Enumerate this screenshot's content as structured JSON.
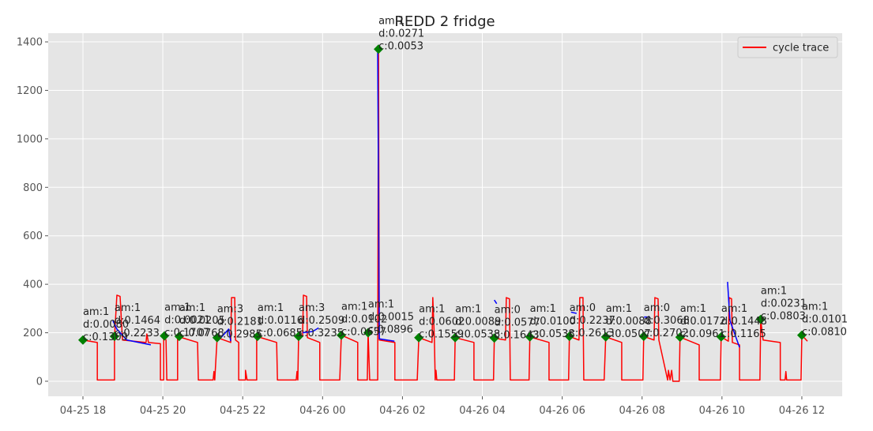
{
  "chart_data": {
    "type": "line",
    "title": "REDD 2 fridge",
    "xlim": [
      17.13,
      37.01
    ],
    "xticks": [
      {
        "value": 18,
        "label": "04-25 18"
      },
      {
        "value": 20,
        "label": "04-25 20"
      },
      {
        "value": 22,
        "label": "04-25 22"
      },
      {
        "value": 24,
        "label": "04-26 00"
      },
      {
        "value": 26,
        "label": "04-26 02"
      },
      {
        "value": 28,
        "label": "04-26 04"
      },
      {
        "value": 30,
        "label": "04-26 06"
      },
      {
        "value": 32,
        "label": "04-26 08"
      },
      {
        "value": 34,
        "label": "04-26 10"
      },
      {
        "value": 36,
        "label": "04-26 12"
      }
    ],
    "ylim": [
      -62,
      1436
    ],
    "yticks": [
      0,
      200,
      400,
      600,
      800,
      1000,
      1200,
      1400
    ],
    "grid": true,
    "legend": "upper right",
    "series": [
      {
        "name": "cycle trace",
        "color": "#ff0000",
        "x": [
          18.0,
          18.36,
          18.36,
          18.79,
          18.79,
          18.85,
          18.93,
          18.99,
          19.58,
          19.6,
          19.64,
          19.94,
          19.94,
          20.02,
          20.02,
          20.08,
          20.1,
          20.37,
          20.37,
          20.87,
          20.89,
          21.26,
          21.28,
          21.3,
          21.36,
          21.7,
          21.72,
          21.8,
          21.82,
          21.9,
          21.9,
          22.07,
          22.07,
          22.11,
          22.35,
          22.35,
          22.85,
          22.87,
          23.34,
          23.36,
          23.38,
          23.4,
          23.5,
          23.52,
          23.6,
          23.62,
          23.93,
          23.93,
          24.43,
          24.47,
          24.88,
          24.88,
          25.12,
          25.14,
          25.18,
          25.38,
          25.4,
          25.42,
          25.81,
          25.81,
          26.37,
          26.41,
          26.74,
          26.76,
          26.8,
          26.82,
          26.84,
          26.86,
          27.3,
          27.32,
          27.79,
          27.79,
          28.28,
          28.3,
          28.58,
          28.6,
          28.68,
          28.7,
          29.17,
          29.19,
          29.67,
          29.67,
          30.16,
          30.18,
          30.42,
          30.44,
          30.52,
          30.54,
          31.05,
          31.09,
          31.49,
          31.49,
          32.02,
          32.04,
          32.3,
          32.32,
          32.4,
          32.42,
          32.64,
          32.66,
          32.7,
          32.74,
          32.77,
          32.93,
          32.95,
          33.43,
          33.43,
          33.96,
          33.98,
          34.16,
          34.18,
          34.24,
          34.26,
          34.44,
          34.44,
          34.95,
          34.97,
          35.03,
          35.46,
          35.46,
          35.58,
          35.6,
          35.62,
          35.98,
          36.0,
          36.14
        ],
        "values": [
          170,
          160,
          5,
          5,
          180,
          355,
          350,
          170,
          160,
          195,
          160,
          155,
          5,
          5,
          185,
          170,
          5,
          5,
          185,
          160,
          5,
          5,
          40,
          5,
          180,
          160,
          345,
          345,
          170,
          160,
          5,
          5,
          45,
          5,
          5,
          185,
          160,
          5,
          5,
          40,
          5,
          185,
          185,
          355,
          350,
          180,
          160,
          5,
          5,
          190,
          160,
          5,
          5,
          200,
          5,
          5,
          1370,
          170,
          160,
          5,
          5,
          180,
          160,
          345,
          170,
          5,
          45,
          5,
          5,
          180,
          160,
          5,
          5,
          178,
          170,
          345,
          340,
          5,
          5,
          183,
          160,
          5,
          5,
          185,
          170,
          345,
          345,
          5,
          5,
          183,
          160,
          5,
          5,
          185,
          170,
          345,
          340,
          170,
          5,
          45,
          5,
          45,
          0,
          0,
          182,
          150,
          5,
          5,
          183,
          165,
          345,
          340,
          160,
          150,
          5,
          5,
          255,
          170,
          160,
          5,
          5,
          40,
          5,
          5,
          190,
          165
        ]
      },
      {
        "color": "#0000ff",
        "x": [
          18.75,
          18.85,
          19.1,
          19.7,
          null,
          21.4,
          21.65,
          21.7,
          null,
          23.5,
          23.75,
          23.9,
          null,
          25.38,
          25.42,
          25.8,
          null,
          28.3,
          28.36,
          null,
          30.22,
          30.36,
          null,
          32.05,
          32.2,
          null,
          34.14,
          34.2,
          34.44
        ],
        "values": [
          250,
          215,
          170,
          150,
          null,
          170,
          215,
          165,
          null,
          200,
          205,
          220,
          null,
          1370,
          175,
          165,
          null,
          335,
          320,
          null,
          285,
          280,
          null,
          265,
          265,
          null,
          410,
          250,
          140
        ]
      }
    ],
    "markers": {
      "color": "#008000",
      "x": [
        18.0,
        18.79,
        20.04,
        20.41,
        21.36,
        22.37,
        23.4,
        24.47,
        25.14,
        25.4,
        26.41,
        27.32,
        28.3,
        29.19,
        30.18,
        31.09,
        32.04,
        32.95,
        33.98,
        34.97,
        36.0
      ],
      "values": [
        170,
        185,
        187,
        185,
        180,
        185,
        185,
        190,
        200,
        1370,
        180,
        180,
        178,
        183,
        185,
        183,
        185,
        182,
        183,
        255,
        190
      ],
      "labels": [
        [
          "am:1",
          "d:0.0080",
          "c:0.1309"
        ],
        [
          "am:1",
          "d:0.1464",
          "c:0.2233"
        ],
        [
          "am:1",
          "d:0.0021",
          "c:0.1707"
        ],
        [
          "am:1",
          "d:0.0205",
          "c:0.0768"
        ],
        [
          "am:3",
          "d:0.2181",
          "c:0.2985"
        ],
        [
          "am:1",
          "d:0.0116",
          "c:0.0685"
        ],
        [
          "am:3",
          "d:0.2509",
          "c:0.3235"
        ],
        [
          "am:1",
          "d:0.0102",
          "c:0.0657"
        ],
        [
          "am:1",
          "d:0.0015",
          "c:0.0896"
        ],
        [
          "am:1",
          "d:0.0271",
          "c:0.0053"
        ],
        [
          "am:1",
          "d:0.0602",
          "c:0.1559"
        ],
        [
          "am:1",
          "d:0.0089",
          "c:0.0538"
        ],
        [
          "am:0",
          "d:0.0577",
          "c:0.1643"
        ],
        [
          "am:1",
          "d:0.0100",
          "c:0.0538"
        ],
        [
          "am:0",
          "d:0.2237",
          "c:0.2613"
        ],
        [
          "am:1",
          "d:0.0088",
          "c:0.0507"
        ],
        [
          "am:0",
          "d:0.3068",
          "c:0.2702"
        ],
        [
          "am:1",
          "d:0.0172",
          "c:0.0961"
        ],
        [
          "am:1",
          "d:0.1448",
          "c:0.1165"
        ],
        [
          "am:1",
          "d:0.0231",
          "c:0.0803"
        ],
        [
          "am:1",
          "d:0.0101",
          "c:0.0810"
        ]
      ]
    }
  }
}
